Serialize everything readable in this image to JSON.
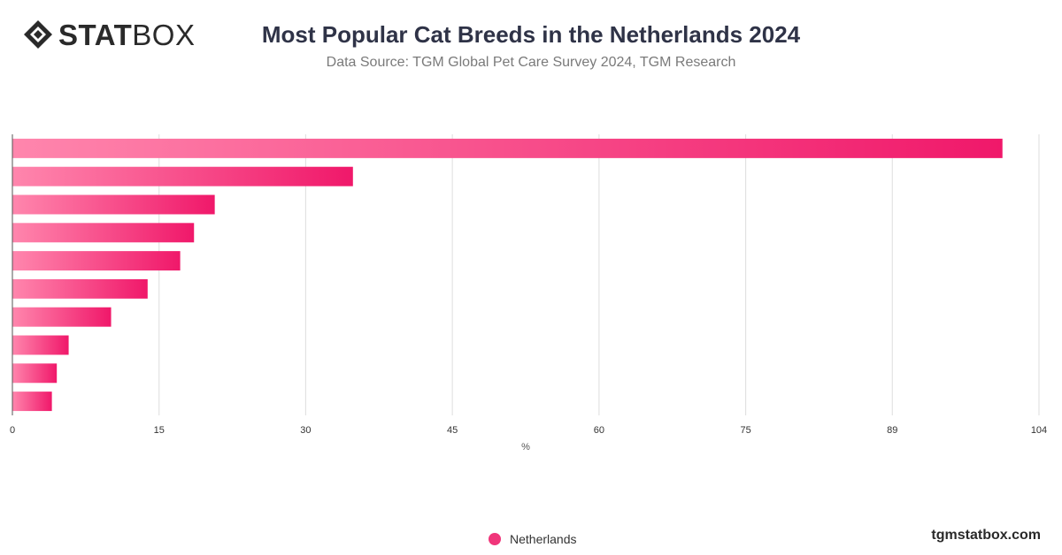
{
  "brand": {
    "logo_bold": "STAT",
    "logo_light": "BOX",
    "site": "tgmstatbox.com"
  },
  "colors": {
    "bar_start": "#ff86ad",
    "bar_end": "#f0186a",
    "grid": "#dddddd",
    "axis": "#555555"
  },
  "chart_data": {
    "type": "bar",
    "orientation": "horizontal",
    "title": "Most Popular Cat Breeds in the Netherlands 2024",
    "subtitle": "Data Source: TGM Global Pet Care Survey 2024, TGM Research",
    "xlabel": "%",
    "ylabel": "",
    "xlim": [
      0,
      104
    ],
    "x_ticks": [
      "0",
      "15",
      "30",
      "45",
      "60",
      "75",
      "89",
      "104"
    ],
    "x_tick_values": [
      0,
      14.86,
      29.71,
      44.57,
      59.43,
      74.29,
      89.14,
      104
    ],
    "categories": [
      "",
      "",
      "",
      "",
      "",
      "",
      "",
      "",
      "",
      ""
    ],
    "series": [
      {
        "name": "Netherlands",
        "values": [
          100.3,
          34.5,
          20.5,
          18.4,
          17.0,
          13.7,
          10.0,
          5.7,
          4.5,
          4.0
        ]
      }
    ],
    "grid": true,
    "legend_position": "bottom-center"
  }
}
